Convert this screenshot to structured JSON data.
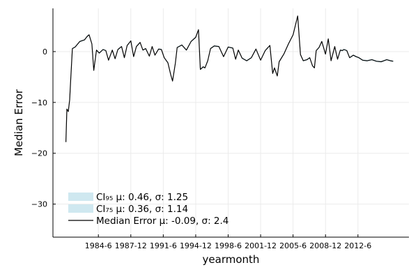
{
  "chart_data": {
    "type": "line",
    "xlabel": "yearmonth",
    "ylabel": "Median Error",
    "x_range_years": [
      1979.6,
      2018.0
    ],
    "ylim": [
      -36.5,
      8.5
    ],
    "grid": true,
    "legend_placement": "bottom-left",
    "x_ticks": [
      {
        "label": "1984-6",
        "x": 1984.5
      },
      {
        "label": "1987-12",
        "x": 1988.0
      },
      {
        "label": "1991-6",
        "x": 1991.5
      },
      {
        "label": "1994-12",
        "x": 1995.0
      },
      {
        "label": "1998-6",
        "x": 1998.5
      },
      {
        "label": "2001-12",
        "x": 2002.0
      },
      {
        "label": "2005-6",
        "x": 2005.5
      },
      {
        "label": "2008-12",
        "x": 2009.0
      },
      {
        "label": "2012-6",
        "x": 2012.5
      }
    ],
    "y_ticks": [
      {
        "label": "0",
        "y": 0
      },
      {
        "label": "−10",
        "y": -10
      },
      {
        "label": "−20",
        "y": -20
      },
      {
        "label": "−30",
        "y": -30
      }
    ],
    "legend": [
      {
        "label": "CI₉₅ μ: 0.46, σ: 1.25",
        "kind": "band",
        "color": "#cfe8f0"
      },
      {
        "label": "CI₇₅ μ: 0.36, σ: 1.14",
        "kind": "band",
        "color": "#cfe8f0"
      },
      {
        "label": "Median Error μ: -0.09, σ: 2.4",
        "kind": "line",
        "color": "#000000"
      }
    ],
    "series": [
      {
        "name": "Median Error",
        "color": "#000000",
        "x": [
          1981.0,
          1981.1,
          1981.25,
          1981.4,
          1981.5,
          1981.7,
          1982.0,
          1982.5,
          1983.0,
          1983.3,
          1983.5,
          1983.8,
          1984.0,
          1984.3,
          1984.6,
          1985.0,
          1985.3,
          1985.6,
          1986.0,
          1986.3,
          1986.6,
          1987.0,
          1987.3,
          1987.6,
          1988.0,
          1988.3,
          1988.6,
          1989.0,
          1989.3,
          1989.6,
          1990.0,
          1990.3,
          1990.6,
          1991.0,
          1991.3,
          1991.6,
          1992.0,
          1992.3,
          1992.5,
          1992.8,
          1993.0,
          1993.5,
          1994.0,
          1994.5,
          1995.0,
          1995.3,
          1995.5,
          1995.8,
          1996.0,
          1996.3,
          1996.6,
          1997.0,
          1997.5,
          1998.0,
          1998.5,
          1999.0,
          1999.3,
          1999.6,
          2000.0,
          2000.5,
          2001.0,
          2001.5,
          2002.0,
          2002.5,
          2003.0,
          2003.3,
          2003.5,
          2003.8,
          2004.0,
          2004.5,
          2005.0,
          2005.5,
          2006.0,
          2006.3,
          2006.6,
          2007.0,
          2007.3,
          2007.6,
          2007.8,
          2008.0,
          2008.3,
          2008.6,
          2009.0,
          2009.3,
          2009.6,
          2010.0,
          2010.3,
          2010.6,
          2010.8,
          2011.0,
          2011.3,
          2011.6,
          2012.0,
          2012.3,
          2012.6,
          2013.0,
          2013.5,
          2014.0,
          2014.5,
          2015.0,
          2015.3,
          2015.6,
          2016.0,
          2016.3
        ],
        "y": [
          -17.8,
          -11.3,
          -11.8,
          -9.5,
          -6.0,
          0.6,
          0.9,
          2.0,
          2.3,
          3.0,
          3.3,
          1.5,
          -3.7,
          0.3,
          -0.3,
          0.4,
          0.2,
          -1.7,
          0.3,
          -1.4,
          0.4,
          1.0,
          -1.2,
          1.2,
          2.1,
          -1.0,
          1.0,
          1.8,
          0.3,
          0.6,
          -0.9,
          1.0,
          -0.7,
          0.5,
          0.4,
          -1.2,
          -2.2,
          -4.5,
          -5.8,
          -2.3,
          0.8,
          1.3,
          0.3,
          2.0,
          2.8,
          4.3,
          -3.5,
          -3.0,
          -3.2,
          -1.8,
          0.6,
          1.1,
          1.0,
          -1.0,
          0.9,
          0.7,
          -1.5,
          0.3,
          -1.3,
          -1.8,
          -1.2,
          0.5,
          -1.7,
          0.2,
          1.2,
          -4.3,
          -3.2,
          -4.8,
          -2.0,
          -0.5,
          1.5,
          3.3,
          7.0,
          -0.6,
          -1.8,
          -1.6,
          -1.2,
          -2.8,
          -3.2,
          0.2,
          0.8,
          2.0,
          -0.5,
          2.5,
          -1.8,
          1.0,
          -1.5,
          0.3,
          0.2,
          0.4,
          0.2,
          -1.2,
          -0.7,
          -1.0,
          -1.2,
          -1.7,
          -1.8,
          -1.6,
          -1.9,
          -2.0,
          -1.8,
          -1.6,
          -1.8,
          -1.9
        ]
      }
    ]
  }
}
